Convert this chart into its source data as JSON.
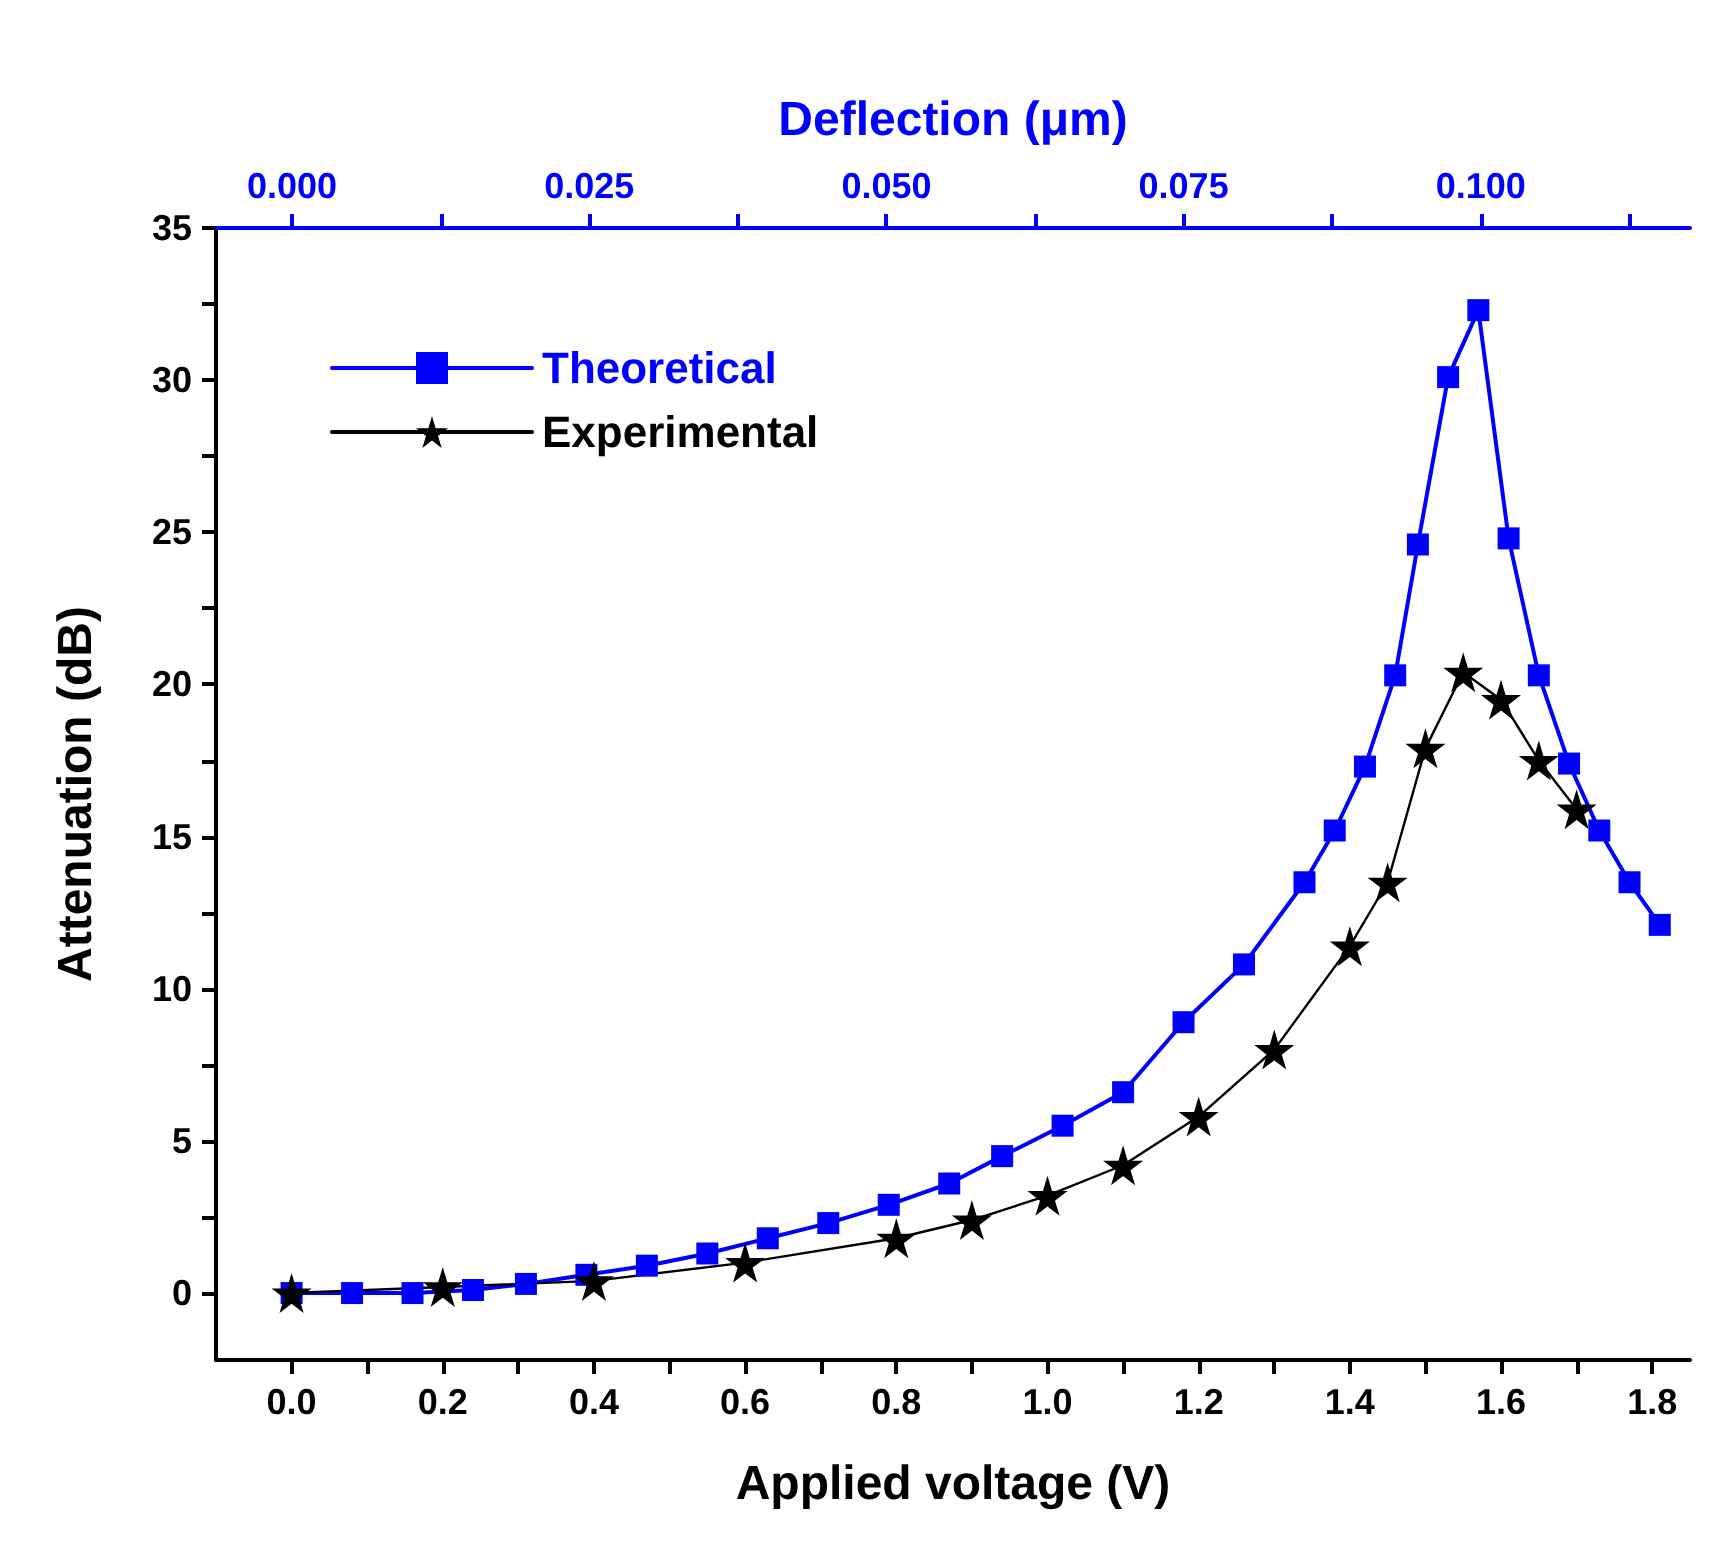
{
  "chart_data": {
    "type": "line",
    "xlabel": "Applied voltage (V)",
    "ylabel": "Attenuation (dB)",
    "x2label": "Deflection (μm)",
    "xlim": [
      -0.1,
      1.85
    ],
    "ylim": [
      -2.2,
      35
    ],
    "x2lim": [
      -0.0064,
      0.1176
    ],
    "xticks": [
      {
        "value": 0,
        "label": "0.0"
      },
      {
        "value": 0.1,
        "label": null
      },
      {
        "value": 0.2,
        "label": "0.2"
      },
      {
        "value": 0.3,
        "label": null
      },
      {
        "value": 0.4,
        "label": "0.4"
      },
      {
        "value": 0.5,
        "label": null
      },
      {
        "value": 0.6,
        "label": "0.6"
      },
      {
        "value": 0.7,
        "label": null
      },
      {
        "value": 0.8,
        "label": "0.8"
      },
      {
        "value": 0.9,
        "label": null
      },
      {
        "value": 1,
        "label": "1.0"
      },
      {
        "value": 1.1,
        "label": null
      },
      {
        "value": 1.2,
        "label": "1.2"
      },
      {
        "value": 1.3,
        "label": null
      },
      {
        "value": 1.4,
        "label": "1.4"
      },
      {
        "value": 1.5,
        "label": null
      },
      {
        "value": 1.6,
        "label": "1.6"
      },
      {
        "value": 1.7,
        "label": null
      },
      {
        "value": 1.8,
        "label": "1.8"
      }
    ],
    "x2ticks": [
      {
        "value": 0,
        "label": "0.000"
      },
      {
        "value": 0.0125,
        "label": null
      },
      {
        "value": 0.025,
        "label": "0.025"
      },
      {
        "value": 0.0375,
        "label": null
      },
      {
        "value": 0.05,
        "label": "0.050"
      },
      {
        "value": 0.0625,
        "label": null
      },
      {
        "value": 0.075,
        "label": "0.075"
      },
      {
        "value": 0.0875,
        "label": null
      },
      {
        "value": 0.1,
        "label": "0.100"
      },
      {
        "value": 0.1125,
        "label": null
      }
    ],
    "yticks": [
      0,
      {
        "value": 2.5,
        "label": null
      },
      5,
      {
        "value": 7.5,
        "label": null
      },
      10,
      {
        "value": 12.5,
        "label": null
      },
      15,
      {
        "value": 17.5,
        "label": null
      },
      20,
      {
        "value": 22.5,
        "label": null
      },
      25,
      {
        "value": 27.5,
        "label": null
      },
      30,
      {
        "value": 32.5,
        "label": null
      },
      35
    ],
    "grid": false,
    "legend": "top left",
    "line_style": "solid",
    "series": [
      {
        "name": "Theoretical",
        "color": "#0000ff",
        "marker": "square",
        "x": [
          0,
          0.08,
          0.16,
          0.24,
          0.31,
          0.39,
          0.47,
          0.55,
          0.63,
          0.71,
          0.79,
          0.87,
          0.94,
          1.02,
          1.1,
          1.18,
          1.26,
          1.34,
          1.38,
          1.42,
          1.46,
          1.49,
          1.53,
          1.57,
          1.61,
          1.65,
          1.69,
          1.73,
          1.77,
          1.81
        ],
        "values": [
          0,
          0,
          0,
          0.1,
          0.3,
          0.6,
          0.9,
          1.3,
          1.8,
          2.3,
          2.9,
          3.6,
          4.5,
          5.5,
          6.6,
          8.9,
          10.8,
          13.5,
          15.2,
          17.3,
          20.3,
          24.6,
          30.1,
          32.3,
          24.8,
          20.3,
          17.4,
          15.2,
          13.5,
          12.1
        ]
      },
      {
        "name": "Experimental",
        "color": "#000000",
        "marker": "star",
        "x": [
          0,
          0.2,
          0.4,
          0.6,
          0.8,
          0.9,
          1,
          1.1,
          1.2,
          1.3,
          1.4,
          1.45,
          1.5,
          1.55,
          1.6,
          1.65,
          1.7
        ],
        "values": [
          0,
          0.2,
          0.4,
          1,
          1.8,
          2.4,
          3.2,
          4.2,
          5.8,
          8,
          11.4,
          13.5,
          17.9,
          20.4,
          19.5,
          17.5,
          15.9
        ]
      }
    ]
  }
}
